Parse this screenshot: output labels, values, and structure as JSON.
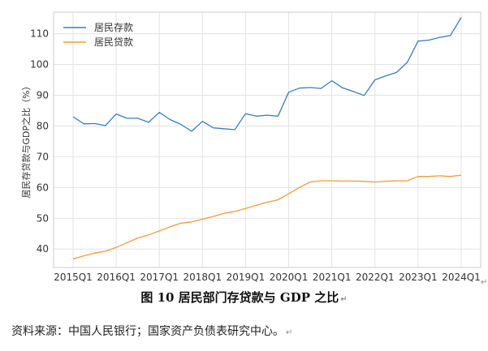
{
  "chart_data": {
    "type": "line",
    "title": "",
    "xlabel": "",
    "ylabel": "居民存贷款与GDP之比（%）",
    "ylim": [
      34,
      117
    ],
    "yticks": [
      40,
      50,
      60,
      70,
      80,
      90,
      100,
      110
    ],
    "grid": true,
    "legend_position": "top-left",
    "x": [
      "2015Q1",
      "2015Q2",
      "2015Q3",
      "2015Q4",
      "2016Q1",
      "2016Q2",
      "2016Q3",
      "2016Q4",
      "2017Q1",
      "2017Q2",
      "2017Q3",
      "2017Q4",
      "2018Q1",
      "2018Q2",
      "2018Q3",
      "2018Q4",
      "2019Q1",
      "2019Q2",
      "2019Q3",
      "2019Q4",
      "2020Q1",
      "2020Q2",
      "2020Q3",
      "2020Q4",
      "2021Q1",
      "2021Q2",
      "2021Q3",
      "2021Q4",
      "2022Q1",
      "2022Q2",
      "2022Q3",
      "2022Q4",
      "2023Q1",
      "2023Q2",
      "2023Q3",
      "2023Q4",
      "2024Q1"
    ],
    "xticks": [
      "2015Q1",
      "2016Q1",
      "2017Q1",
      "2018Q1",
      "2019Q1",
      "2020Q1",
      "2021Q1",
      "2022Q1",
      "2023Q1",
      "2024Q1"
    ],
    "series": [
      {
        "name": "居民存款",
        "color": "#3b7dbf",
        "values": [
          83.0,
          80.7,
          80.8,
          80.1,
          83.9,
          82.5,
          82.5,
          81.2,
          84.4,
          82.1,
          80.5,
          78.3,
          81.5,
          79.4,
          79.1,
          78.8,
          84.0,
          83.2,
          83.5,
          83.2,
          91.0,
          92.3,
          92.5,
          92.2,
          94.7,
          92.4,
          91.2,
          89.9,
          95.0,
          96.3,
          97.4,
          100.7,
          107.6,
          107.9,
          108.8,
          109.4,
          115.3
        ]
      },
      {
        "name": "居民贷款",
        "color": "#f39a3c",
        "values": [
          36.8,
          37.8,
          38.7,
          39.3,
          40.5,
          42.1,
          43.6,
          44.6,
          45.9,
          47.2,
          48.4,
          48.8,
          49.7,
          50.6,
          51.6,
          52.2,
          53.2,
          54.2,
          55.2,
          56.0,
          58.0,
          60.0,
          61.8,
          62.2,
          62.2,
          62.1,
          62.1,
          62.0,
          61.8,
          62.0,
          62.2,
          62.2,
          63.6,
          63.6,
          63.8,
          63.6,
          64.0
        ]
      }
    ]
  },
  "caption": "图 10 居民部门存贷款与 GDP 之比",
  "source": "资料来源：中国人民银行；国家资产负债表研究中心。",
  "caption_mark": "↵",
  "source_mark": "↵",
  "side_mark": "↵"
}
